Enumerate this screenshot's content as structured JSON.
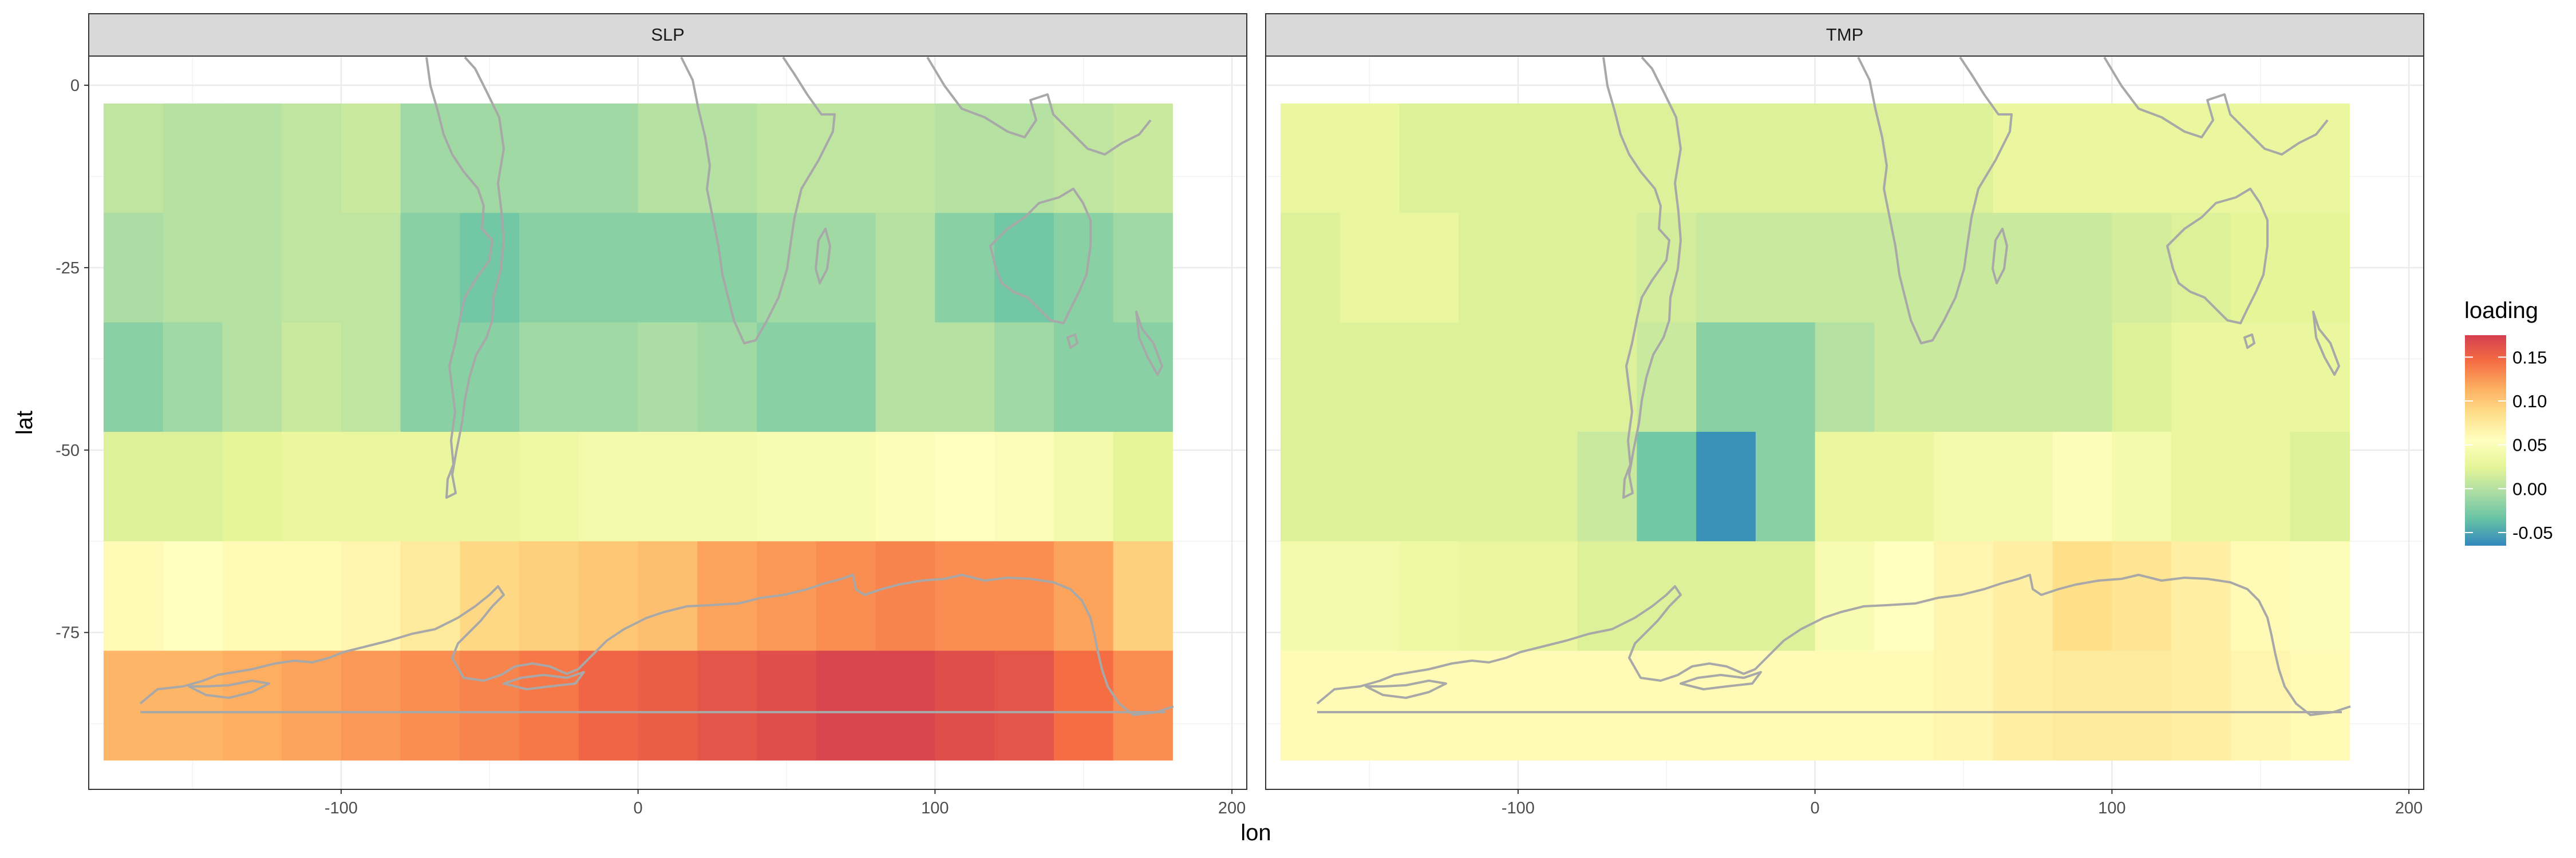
{
  "chart_data": {
    "type": "heatmap",
    "xlabel": "lon",
    "ylabel": "lat",
    "xlim": [
      -185,
      205
    ],
    "ylim": [
      -96.5,
      4
    ],
    "x_ticks": [
      -100,
      0,
      100,
      200
    ],
    "y_ticks": [
      0,
      -25,
      -50,
      -75
    ],
    "x_tick_labels": [
      "-100",
      "0",
      "100",
      "200"
    ],
    "y_tick_labels": [
      "0",
      "-25",
      "-50",
      "-75"
    ],
    "cell_lon_edges": [
      -180,
      -160,
      -140,
      -120,
      -100,
      -80,
      -60,
      -40,
      -20,
      0,
      20,
      40,
      60,
      80,
      100,
      120,
      140,
      160,
      180
    ],
    "cell_lat_edges": [
      -2.5,
      -17.5,
      -32.5,
      -47.5,
      -62.5,
      -77.5,
      -92.5
    ],
    "legend": {
      "title": "loading",
      "min": -0.065,
      "max": 0.175,
      "ticks": [
        0.15,
        0.1,
        0.05,
        0.0,
        -0.05
      ],
      "tick_labels": [
        "0.15",
        "0.10",
        "0.05",
        "0.00",
        "-0.05"
      ],
      "colors": [
        "#3288bd",
        "#66c2a5",
        "#abdda4",
        "#e6f598",
        "#ffffbf",
        "#fee08b",
        "#fdae61",
        "#f46d43",
        "#d53e4f"
      ]
    },
    "panels": [
      {
        "strip": "SLP",
        "values": [
          [
            0.005,
            0.0,
            0.0,
            0.005,
            0.01,
            -0.01,
            -0.01,
            -0.01,
            -0.01,
            0.0,
            0.0,
            0.005,
            0.005,
            0.005,
            0.0,
            0.0,
            0.005,
            0.01
          ],
          [
            -0.005,
            0.0,
            0.0,
            0.005,
            0.005,
            -0.02,
            -0.03,
            -0.02,
            -0.02,
            -0.02,
            -0.02,
            -0.01,
            -0.01,
            0.0,
            -0.02,
            -0.03,
            -0.02,
            -0.01
          ],
          [
            -0.02,
            -0.01,
            0.0,
            0.01,
            0.005,
            -0.02,
            -0.02,
            -0.01,
            -0.01,
            -0.005,
            -0.01,
            -0.02,
            -0.02,
            0.0,
            0.0,
            -0.01,
            -0.02,
            -0.02
          ],
          [
            0.02,
            0.02,
            0.025,
            0.03,
            0.03,
            0.03,
            0.03,
            0.035,
            0.04,
            0.04,
            0.04,
            0.045,
            0.045,
            0.05,
            0.055,
            0.05,
            0.04,
            0.025
          ],
          [
            0.06,
            0.055,
            0.06,
            0.06,
            0.065,
            0.075,
            0.09,
            0.095,
            0.1,
            0.105,
            0.12,
            0.125,
            0.13,
            0.135,
            0.13,
            0.13,
            0.12,
            0.095
          ],
          [
            0.11,
            0.11,
            0.115,
            0.12,
            0.125,
            0.13,
            0.135,
            0.14,
            0.15,
            0.155,
            0.16,
            0.165,
            0.17,
            0.17,
            0.165,
            0.16,
            0.145,
            0.13
          ]
        ]
      },
      {
        "strip": "TMP",
        "values": [
          [
            0.03,
            0.03,
            0.02,
            0.02,
            0.02,
            0.02,
            0.02,
            0.02,
            0.02,
            0.02,
            0.02,
            0.02,
            0.03,
            0.03,
            0.03,
            0.03,
            0.03,
            0.03
          ],
          [
            0.02,
            0.03,
            0.03,
            0.02,
            0.02,
            0.02,
            0.015,
            0.01,
            0.01,
            0.01,
            0.01,
            0.01,
            0.01,
            0.01,
            0.015,
            0.02,
            0.025,
            0.025
          ],
          [
            0.02,
            0.02,
            0.02,
            0.02,
            0.02,
            0.02,
            0.01,
            -0.02,
            -0.02,
            0.0,
            0.01,
            0.01,
            0.01,
            0.01,
            0.02,
            0.03,
            0.03,
            0.03
          ],
          [
            0.02,
            0.02,
            0.02,
            0.02,
            0.02,
            0.01,
            -0.03,
            -0.06,
            -0.02,
            0.03,
            0.03,
            0.04,
            0.04,
            0.05,
            0.04,
            0.03,
            0.03,
            0.02
          ],
          [
            0.04,
            0.04,
            0.035,
            0.03,
            0.03,
            0.02,
            0.02,
            0.02,
            0.02,
            0.045,
            0.055,
            0.065,
            0.07,
            0.085,
            0.08,
            0.07,
            0.06,
            0.05
          ],
          [
            0.06,
            0.06,
            0.06,
            0.06,
            0.06,
            0.06,
            0.06,
            0.06,
            0.06,
            0.06,
            0.06,
            0.065,
            0.07,
            0.075,
            0.075,
            0.07,
            0.065,
            0.06
          ]
        ]
      }
    ]
  }
}
